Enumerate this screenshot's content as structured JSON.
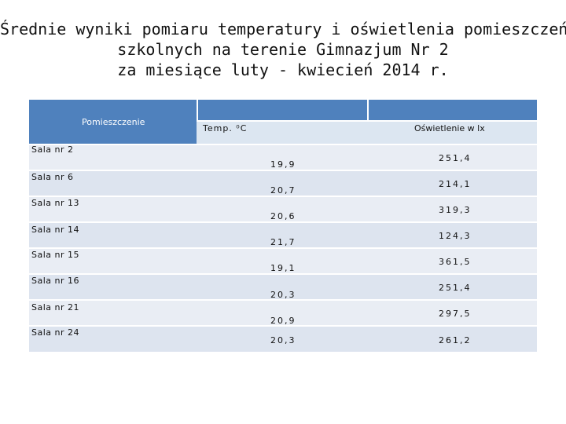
{
  "title": {
    "line1": "Średnie wyniki pomiaru temperatury i oświetlenia pomieszczeń",
    "line2": "szkolnych na terenie Gimnazjum Nr 2",
    "line3": "za miesiące luty - kwiecień 2014 r."
  },
  "table": {
    "headers": {
      "room": "Pomieszczenie",
      "temp": "Temp. ⁰C",
      "light": "Oświetlenie w lx"
    },
    "rows": [
      {
        "room": "Sala nr 2",
        "temp": "19,9",
        "light": "251,4"
      },
      {
        "room": "Sala nr 6",
        "temp": "20,7",
        "light": "214,1"
      },
      {
        "room": "Sala nr 13",
        "temp": "20,6",
        "light": "319,3"
      },
      {
        "room": "Sala nr 14",
        "temp": "21,7",
        "light": "124,3"
      },
      {
        "room": "Sala nr 15",
        "temp": "19,1",
        "light": "361,5"
      },
      {
        "room": "Sala nr 16",
        "temp": "20,3",
        "light": "251,4"
      },
      {
        "room": "Sala nr 21",
        "temp": "20,9",
        "light": "297,5"
      },
      {
        "room": "Sala nr 24",
        "temp": "20,3",
        "light": "261,2"
      }
    ]
  }
}
